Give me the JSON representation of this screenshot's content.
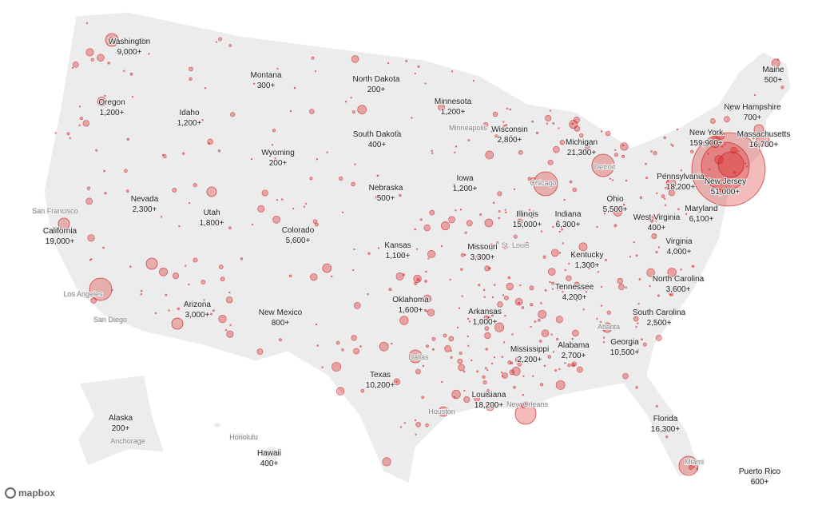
{
  "states": [
    {
      "name": "Washington",
      "count": "9,000+"
    },
    {
      "name": "Montana",
      "count": "300+"
    },
    {
      "name": "North Dakota",
      "count": "200+"
    },
    {
      "name": "Minnesota",
      "count": "1,200+"
    },
    {
      "name": "Maine",
      "count": "500+"
    },
    {
      "name": "Oregon",
      "count": "1,200+"
    },
    {
      "name": "Idaho",
      "count": "1,200+"
    },
    {
      "name": "New Hampshire",
      "count": "700+"
    },
    {
      "name": "South Dakota",
      "count": "400+"
    },
    {
      "name": "Wisconsin",
      "count": "2,800+"
    },
    {
      "name": "New York",
      "count": "159,900+"
    },
    {
      "name": "Massachusetts",
      "count": "16,700+"
    },
    {
      "name": "Michigan",
      "count": "21,300+"
    },
    {
      "name": "Wyoming",
      "count": "200+"
    },
    {
      "name": "Pennsylvania",
      "count": "18,200+"
    },
    {
      "name": "New Jersey",
      "count": "51,000+"
    },
    {
      "name": "Iowa",
      "count": "1,200+"
    },
    {
      "name": "Nebraska",
      "count": "500+"
    },
    {
      "name": "Nevada",
      "count": "2,300+"
    },
    {
      "name": "Utah",
      "count": "1,800+"
    },
    {
      "name": "Ohio",
      "count": "5,500+"
    },
    {
      "name": "Maryland",
      "count": "6,100+"
    },
    {
      "name": "Illinois",
      "count": "15,000+"
    },
    {
      "name": "Indiana",
      "count": "6,300+"
    },
    {
      "name": "West Virginia",
      "count": "400+"
    },
    {
      "name": "California",
      "count": "19,000+"
    },
    {
      "name": "Colorado",
      "count": "5,600+"
    },
    {
      "name": "Kansas",
      "count": "1,100+"
    },
    {
      "name": "Missouri",
      "count": "3,300+"
    },
    {
      "name": "Virginia",
      "count": "4,000+"
    },
    {
      "name": "Kentucky",
      "count": "1,300+"
    },
    {
      "name": "North Carolina",
      "count": "3,600+"
    },
    {
      "name": "Tennessee",
      "count": "4,200+"
    },
    {
      "name": "Oklahoma",
      "count": "1,600+"
    },
    {
      "name": "Arizona",
      "count": "3,000+"
    },
    {
      "name": "Arkansas",
      "count": "1,000+"
    },
    {
      "name": "New Mexico",
      "count": "800+"
    },
    {
      "name": "South Carolina",
      "count": "2,500+"
    },
    {
      "name": "Georgia",
      "count": "10,500+"
    },
    {
      "name": "Alabama",
      "count": "2,700+"
    },
    {
      "name": "Mississippi",
      "count": "2,200+"
    },
    {
      "name": "Texas",
      "count": "10,200+"
    },
    {
      "name": "Louisiana",
      "count": "18,200+"
    },
    {
      "name": "Alaska",
      "count": "200+"
    },
    {
      "name": "Florida",
      "count": "16,300+"
    },
    {
      "name": "Hawaii",
      "count": "400+"
    },
    {
      "name": "Puerto Rico",
      "count": "600+"
    }
  ],
  "cities": [
    "San Francisco",
    "Minneapolis",
    "Detroit",
    "Chicago",
    "St. Louis",
    "Los Angeles",
    "San Diego",
    "Atlanta",
    "Dallas",
    "Houston",
    "New Orleans",
    "Anchorage",
    "Honolulu",
    "Miami"
  ],
  "logo": "mapbox"
}
